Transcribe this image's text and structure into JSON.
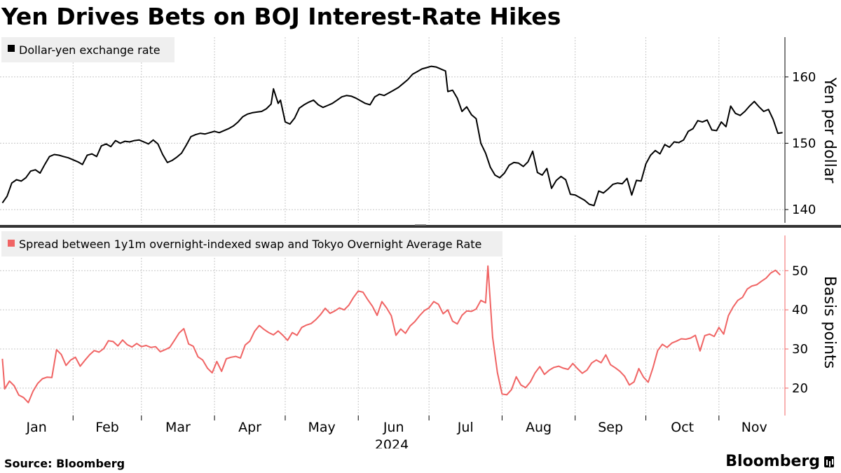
{
  "title": "Yen Drives Bets on BOJ Interest-Rate Hikes",
  "footer": {
    "source": "Source:  Bloomberg",
    "brand": "Bloomberg"
  },
  "colors": {
    "upper_line": "#000000",
    "lower_line": "#f06464",
    "grid": "#c8c8c8",
    "legend_bg": "#efefef",
    "divider": "#333333"
  },
  "chart_data": [
    {
      "type": "line",
      "panel": "upper",
      "legend": "Dollar-yen exchange rate",
      "ylabel": "Yen per dollar",
      "ylim": [
        138,
        166
      ],
      "yticks": [
        140,
        150,
        160
      ],
      "xlim": [
        0,
        333
      ],
      "x_unit": "days since 2024-01-01",
      "points": [
        [
          1,
          141
        ],
        [
          3,
          142
        ],
        [
          5,
          144
        ],
        [
          7,
          144.5
        ],
        [
          9,
          144.3
        ],
        [
          11,
          144.8
        ],
        [
          13,
          145.8
        ],
        [
          15,
          146
        ],
        [
          17,
          145.5
        ],
        [
          19,
          146.8
        ],
        [
          21,
          148
        ],
        [
          23,
          148.3
        ],
        [
          25,
          148.2
        ],
        [
          27,
          148
        ],
        [
          29,
          147.8
        ],
        [
          31,
          147.5
        ],
        [
          33,
          147.2
        ],
        [
          35,
          146.8
        ],
        [
          37,
          148.2
        ],
        [
          39,
          148.4
        ],
        [
          41,
          148.0
        ],
        [
          43,
          149.6
        ],
        [
          45,
          149.9
        ],
        [
          47,
          149.5
        ],
        [
          49,
          150.4
        ],
        [
          51,
          150.0
        ],
        [
          53,
          150.3
        ],
        [
          55,
          150.2
        ],
        [
          57,
          150.4
        ],
        [
          59,
          150.5
        ],
        [
          61,
          150.2
        ],
        [
          63,
          149.9
        ],
        [
          65,
          150.5
        ],
        [
          67,
          149.9
        ],
        [
          69,
          148.3
        ],
        [
          71,
          147.1
        ],
        [
          73,
          147.4
        ],
        [
          75,
          147.9
        ],
        [
          77,
          148.5
        ],
        [
          79,
          149.7
        ],
        [
          81,
          151.0
        ],
        [
          83,
          151.3
        ],
        [
          85,
          151.5
        ],
        [
          87,
          151.4
        ],
        [
          89,
          151.6
        ],
        [
          91,
          151.8
        ],
        [
          93,
          151.6
        ],
        [
          95,
          151.9
        ],
        [
          97,
          152.2
        ],
        [
          99,
          152.6
        ],
        [
          101,
          153.2
        ],
        [
          103,
          154.0
        ],
        [
          105,
          154.4
        ],
        [
          107,
          154.6
        ],
        [
          109,
          154.7
        ],
        [
          111,
          154.8
        ],
        [
          113,
          155.2
        ],
        [
          115,
          155.9
        ],
        [
          116,
          158.2
        ],
        [
          118,
          156.0
        ],
        [
          119,
          156.5
        ],
        [
          121,
          153.2
        ],
        [
          123,
          152.9
        ],
        [
          125,
          153.8
        ],
        [
          127,
          155.3
        ],
        [
          129,
          155.8
        ],
        [
          131,
          156.2
        ],
        [
          133,
          156.5
        ],
        [
          135,
          155.8
        ],
        [
          137,
          155.4
        ],
        [
          139,
          155.7
        ],
        [
          141,
          156.0
        ],
        [
          143,
          156.5
        ],
        [
          145,
          157.0
        ],
        [
          147,
          157.2
        ],
        [
          149,
          157.1
        ],
        [
          151,
          156.8
        ],
        [
          153,
          156.4
        ],
        [
          155,
          156.0
        ],
        [
          157,
          155.8
        ],
        [
          159,
          157.0
        ],
        [
          161,
          157.4
        ],
        [
          163,
          157.2
        ],
        [
          165,
          157.6
        ],
        [
          167,
          158.0
        ],
        [
          169,
          158.4
        ],
        [
          171,
          159.0
        ],
        [
          173,
          159.6
        ],
        [
          175,
          160.4
        ],
        [
          177,
          160.8
        ],
        [
          179,
          161.2
        ],
        [
          181,
          161.4
        ],
        [
          183,
          161.6
        ],
        [
          185,
          161.5
        ],
        [
          187,
          161.2
        ],
        [
          189,
          160.9
        ],
        [
          190,
          157.8
        ],
        [
          192,
          158.0
        ],
        [
          194,
          156.8
        ],
        [
          196,
          154.8
        ],
        [
          198,
          155.5
        ],
        [
          200,
          154.3
        ],
        [
          202,
          153.7
        ],
        [
          204,
          150.0
        ],
        [
          206,
          148.5
        ],
        [
          208,
          146.4
        ],
        [
          210,
          145.2
        ],
        [
          212,
          144.8
        ],
        [
          214,
          145.5
        ],
        [
          216,
          146.7
        ],
        [
          218,
          147.1
        ],
        [
          220,
          147.0
        ],
        [
          222,
          146.5
        ],
        [
          224,
          147.2
        ],
        [
          226,
          148.8
        ],
        [
          228,
          145.6
        ],
        [
          230,
          145.2
        ],
        [
          232,
          146.2
        ],
        [
          234,
          143.2
        ],
        [
          236,
          144.4
        ],
        [
          238,
          145.0
        ],
        [
          240,
          144.5
        ],
        [
          242,
          142.3
        ],
        [
          244,
          142.2
        ],
        [
          246,
          141.8
        ],
        [
          248,
          141.4
        ],
        [
          250,
          140.8
        ],
        [
          252,
          140.6
        ],
        [
          254,
          142.8
        ],
        [
          256,
          142.5
        ],
        [
          258,
          143.1
        ],
        [
          260,
          143.8
        ],
        [
          262,
          144.0
        ],
        [
          264,
          143.9
        ],
        [
          266,
          144.7
        ],
        [
          268,
          142.2
        ],
        [
          270,
          144.4
        ],
        [
          272,
          144.3
        ],
        [
          274,
          146.9
        ],
        [
          276,
          148.2
        ],
        [
          278,
          148.9
        ],
        [
          280,
          148.4
        ],
        [
          282,
          149.8
        ],
        [
          284,
          149.4
        ],
        [
          286,
          150.2
        ],
        [
          288,
          150.1
        ],
        [
          290,
          150.5
        ],
        [
          292,
          151.8
        ],
        [
          294,
          152.2
        ],
        [
          296,
          153.4
        ],
        [
          298,
          153.2
        ],
        [
          300,
          153.5
        ],
        [
          302,
          152.0
        ],
        [
          304,
          151.9
        ],
        [
          306,
          153.2
        ],
        [
          308,
          152.5
        ],
        [
          310,
          155.6
        ],
        [
          312,
          154.5
        ],
        [
          314,
          154.2
        ],
        [
          316,
          154.8
        ],
        [
          318,
          155.6
        ],
        [
          320,
          156.3
        ],
        [
          322,
          155.5
        ],
        [
          324,
          154.8
        ],
        [
          326,
          155.1
        ],
        [
          328,
          153.6
        ],
        [
          330,
          151.5
        ],
        [
          332,
          151.6
        ]
      ]
    },
    {
      "type": "line",
      "panel": "lower",
      "legend": "Spread between 1y1m overnight-indexed swap and Tokyo Overnight Average Rate",
      "ylabel": "Basis points",
      "ylim": [
        13,
        59
      ],
      "yticks": [
        20,
        30,
        40,
        50
      ],
      "xlim": [
        0,
        333
      ],
      "x_unit": "days since 2024-01-01",
      "points": [
        [
          1,
          27.5
        ],
        [
          2,
          19.8
        ],
        [
          4,
          21.8
        ],
        [
          6,
          20.6
        ],
        [
          8,
          18.2
        ],
        [
          10,
          17.6
        ],
        [
          12,
          16.3
        ],
        [
          14,
          19.2
        ],
        [
          16,
          21.2
        ],
        [
          18,
          22.4
        ],
        [
          20,
          22.8
        ],
        [
          22,
          22.7
        ],
        [
          24,
          29.8
        ],
        [
          26,
          28.6
        ],
        [
          28,
          25.8
        ],
        [
          30,
          27.2
        ],
        [
          32,
          27.9
        ],
        [
          34,
          25.6
        ],
        [
          36,
          27.1
        ],
        [
          38,
          28.5
        ],
        [
          40,
          29.6
        ],
        [
          42,
          29.2
        ],
        [
          44,
          30.1
        ],
        [
          46,
          32.1
        ],
        [
          48,
          31.9
        ],
        [
          50,
          30.8
        ],
        [
          52,
          32.3
        ],
        [
          54,
          31.1
        ],
        [
          56,
          30.5
        ],
        [
          58,
          31.4
        ],
        [
          60,
          30.6
        ],
        [
          62,
          30.9
        ],
        [
          64,
          30.4
        ],
        [
          66,
          30.6
        ],
        [
          68,
          29.3
        ],
        [
          70,
          29.8
        ],
        [
          72,
          30.4
        ],
        [
          74,
          32.2
        ],
        [
          76,
          34.1
        ],
        [
          78,
          35.2
        ],
        [
          80,
          31.3
        ],
        [
          82,
          30.7
        ],
        [
          84,
          28.0
        ],
        [
          86,
          27.2
        ],
        [
          88,
          25.1
        ],
        [
          90,
          23.9
        ],
        [
          92,
          26.8
        ],
        [
          94,
          24.3
        ],
        [
          96,
          27.5
        ],
        [
          98,
          27.9
        ],
        [
          100,
          28.1
        ],
        [
          102,
          27.7
        ],
        [
          104,
          31.0
        ],
        [
          106,
          32.0
        ],
        [
          108,
          34.5
        ],
        [
          110,
          36.0
        ],
        [
          112,
          35.0
        ],
        [
          114,
          34.2
        ],
        [
          116,
          33.6
        ],
        [
          118,
          34.6
        ],
        [
          120,
          33.5
        ],
        [
          122,
          32.2
        ],
        [
          124,
          34.2
        ],
        [
          126,
          33.5
        ],
        [
          128,
          35.5
        ],
        [
          130,
          36.1
        ],
        [
          132,
          36.5
        ],
        [
          134,
          37.5
        ],
        [
          136,
          38.8
        ],
        [
          138,
          40.4
        ],
        [
          140,
          39.1
        ],
        [
          142,
          39.7
        ],
        [
          144,
          40.5
        ],
        [
          146,
          40.0
        ],
        [
          148,
          41.2
        ],
        [
          150,
          43.2
        ],
        [
          152,
          44.8
        ],
        [
          154,
          44.5
        ],
        [
          156,
          42.6
        ],
        [
          158,
          40.9
        ],
        [
          160,
          38.6
        ],
        [
          162,
          42.1
        ],
        [
          164,
          40.5
        ],
        [
          166,
          38.5
        ],
        [
          168,
          33.5
        ],
        [
          170,
          35.1
        ],
        [
          172,
          34.0
        ],
        [
          174,
          35.9
        ],
        [
          176,
          37.0
        ],
        [
          178,
          38.5
        ],
        [
          180,
          39.8
        ],
        [
          182,
          40.5
        ],
        [
          184,
          42.1
        ],
        [
          186,
          41.4
        ],
        [
          188,
          39.0
        ],
        [
          190,
          40.0
        ],
        [
          192,
          37.1
        ],
        [
          194,
          36.4
        ],
        [
          196,
          38.6
        ],
        [
          198,
          39.7
        ],
        [
          200,
          39.6
        ],
        [
          202,
          40.2
        ],
        [
          204,
          42.4
        ],
        [
          206,
          41.8
        ],
        [
          207,
          51.2
        ],
        [
          209,
          33.0
        ],
        [
          211,
          24.0
        ],
        [
          213,
          18.5
        ],
        [
          215,
          18.3
        ],
        [
          217,
          19.6
        ],
        [
          219,
          22.9
        ],
        [
          221,
          20.8
        ],
        [
          223,
          20.1
        ],
        [
          225,
          21.6
        ],
        [
          227,
          23.9
        ],
        [
          229,
          25.5
        ],
        [
          231,
          23.5
        ],
        [
          233,
          24.6
        ],
        [
          235,
          25.3
        ],
        [
          237,
          25.6
        ],
        [
          239,
          25.1
        ],
        [
          241,
          24.8
        ],
        [
          243,
          26.3
        ],
        [
          245,
          25.0
        ],
        [
          247,
          23.8
        ],
        [
          249,
          24.6
        ],
        [
          251,
          26.4
        ],
        [
          253,
          27.2
        ],
        [
          255,
          26.5
        ],
        [
          257,
          28.5
        ],
        [
          259,
          26.0
        ],
        [
          261,
          25.2
        ],
        [
          263,
          24.3
        ],
        [
          265,
          23.0
        ],
        [
          267,
          20.8
        ],
        [
          269,
          21.6
        ],
        [
          271,
          25.0
        ],
        [
          273,
          22.8
        ],
        [
          275,
          21.5
        ],
        [
          277,
          25.2
        ],
        [
          279,
          29.6
        ],
        [
          281,
          31.2
        ],
        [
          283,
          30.4
        ],
        [
          285,
          31.5
        ],
        [
          287,
          32.0
        ],
        [
          289,
          32.6
        ],
        [
          291,
          32.5
        ],
        [
          293,
          32.8
        ],
        [
          295,
          33.5
        ],
        [
          297,
          29.5
        ],
        [
          299,
          33.4
        ],
        [
          301,
          33.8
        ],
        [
          303,
          33.2
        ],
        [
          305,
          35.5
        ],
        [
          307,
          33.8
        ],
        [
          309,
          38.5
        ],
        [
          311,
          40.7
        ],
        [
          313,
          42.4
        ],
        [
          315,
          43.2
        ],
        [
          317,
          45.3
        ],
        [
          319,
          46.1
        ],
        [
          321,
          46.4
        ],
        [
          323,
          47.3
        ],
        [
          325,
          48.1
        ],
        [
          327,
          49.4
        ],
        [
          329,
          50.1
        ],
        [
          331,
          48.9
        ]
      ]
    }
  ],
  "x_axis": {
    "months": [
      "Jan",
      "Feb",
      "Mar",
      "Apr",
      "May",
      "Jun",
      "Jul",
      "Aug",
      "Sep",
      "Oct",
      "Nov"
    ],
    "month_centers": [
      15.5,
      45.5,
      75.5,
      106,
      136.5,
      167,
      197.5,
      228.5,
      259,
      289.5,
      320
    ],
    "year": "2024"
  }
}
